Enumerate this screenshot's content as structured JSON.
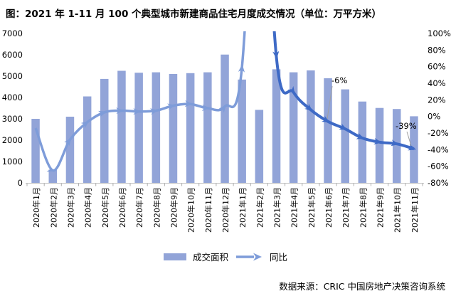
{
  "title": "图：2021 年 1-11 月 100 个典型城市新建商品住宅月度成交情况（单位：万平方米）",
  "footer": "数据来源：CRIC 中国房地产决策咨询系统",
  "legend": {
    "bar_label": "成交面积",
    "line_label": "同比"
  },
  "colors": {
    "bar": "#92A4D8",
    "line_light": "#7E9CD9",
    "line_dark": "#3E6AC6",
    "axis": "#C0C0C0",
    "tick": "#ADADAD",
    "callout": "#A0A0A0",
    "text": "#000000"
  },
  "chart_data": {
    "type": "bar",
    "combo": "bar+line",
    "title": "2021年1-11月100个典型城市新建商品住宅月度成交情况",
    "unit": "万平方米",
    "categories": [
      "2020年1月",
      "2020年2月",
      "2020年3月",
      "2020年4月",
      "2020年5月",
      "2020年6月",
      "2020年7月",
      "2020年8月",
      "2020年9月",
      "2020年10月",
      "2020年11月",
      "2020年12月",
      "2021年1月",
      "2021年2月",
      "2021年3月",
      "2021年4月",
      "2021年5月",
      "2021年6月",
      "2021年7月",
      "2021年8月",
      "2021年9月",
      "2021年10月",
      "2021年11月"
    ],
    "series": [
      {
        "name": "成交面积",
        "type": "bar",
        "axis": "left",
        "values": [
          3000,
          620,
          3100,
          4050,
          4870,
          5250,
          5160,
          5180,
          5100,
          5140,
          5180,
          6010,
          4840,
          3420,
          5320,
          5180,
          5270,
          4900,
          4380,
          3810,
          3510,
          3460,
          3120
        ]
      },
      {
        "name": "同比",
        "type": "line",
        "axis": "right",
        "values_pct": [
          -14,
          -65,
          -28,
          -7,
          5,
          7,
          6,
          7,
          13,
          15,
          10,
          12,
          60,
          450,
          72,
          29,
          8,
          -6,
          -15,
          -26,
          -31,
          -33,
          -39
        ],
        "dark_segment_start_index": 13
      }
    ],
    "y_axis_left": {
      "min": 0,
      "max": 7000,
      "ticks": [
        "0",
        "1000",
        "2000",
        "3000",
        "4000",
        "5000",
        "6000",
        "7000"
      ]
    },
    "y_axis_right": {
      "min": -80,
      "max": 100,
      "ticks": [
        "100%",
        "80%",
        "60%",
        "40%",
        "20%",
        "0%",
        "-20%",
        "-40%",
        "-60%",
        "-80%"
      ]
    },
    "legend_position": "bottom-center",
    "grid": false,
    "annotations": [
      {
        "text": "-6%",
        "x": 466,
        "y": 117,
        "line_x1": 467,
        "line_y1": 121,
        "line_x2": 460,
        "line_y2": 167
      },
      {
        "text": "-39%",
        "x": 556,
        "y": 181,
        "line_x1": 572,
        "line_y1": 185,
        "line_x2": 578,
        "line_y2": 205
      }
    ]
  }
}
